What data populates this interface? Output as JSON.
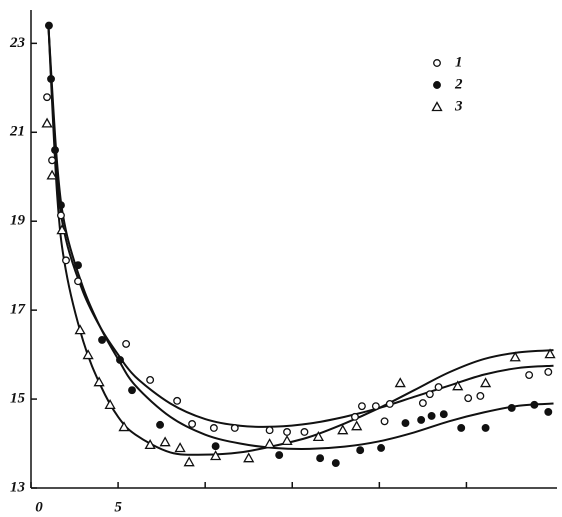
{
  "chart_data": {
    "type": "scatter",
    "xlim": [
      0,
      30.2
    ],
    "ylim": [
      13,
      23.75
    ],
    "xticks": [
      0,
      5,
      {
        "value": 10,
        "label": null
      },
      {
        "value": 15,
        "label": null
      },
      {
        "value": 20,
        "label": null
      },
      {
        "value": 25,
        "label": null
      }
    ],
    "yticks": [
      13,
      15,
      17,
      19,
      21,
      23
    ],
    "legend": "upper right",
    "series": [
      {
        "name": "1",
        "marker": "open-circle",
        "color": "#111",
        "x": [
          0.92,
          1.21,
          1.72,
          2.01,
          2.7,
          5.46,
          6.84,
          8.39,
          9.25,
          10.5,
          11.7,
          13.7,
          14.7,
          15.7,
          18.6,
          19.0,
          19.8,
          20.6,
          20.3,
          22.5,
          22.9,
          23.4,
          25.1,
          25.8,
          28.6,
          29.7
        ],
        "values": [
          21.79,
          20.37,
          19.13,
          18.12,
          17.65,
          16.24,
          15.43,
          14.96,
          14.44,
          14.35,
          14.35,
          14.3,
          14.26,
          14.26,
          14.6,
          14.84,
          14.84,
          14.89,
          14.5,
          14.91,
          15.11,
          15.27,
          15.02,
          15.07,
          15.54,
          15.61
        ]
      },
      {
        "name": "2",
        "marker": "filled-circle",
        "color": "#111",
        "x": [
          1.03,
          1.15,
          1.38,
          1.72,
          2.7,
          4.08,
          5.11,
          5.8,
          7.41,
          10.6,
          14.25,
          16.6,
          17.5,
          18.9,
          20.1,
          21.5,
          22.4,
          23.0,
          23.7,
          24.7,
          26.1,
          27.6,
          28.9,
          29.7
        ],
        "values": [
          23.4,
          22.2,
          20.6,
          19.36,
          18.01,
          16.33,
          15.88,
          15.2,
          14.42,
          13.94,
          13.74,
          13.67,
          13.56,
          13.85,
          13.9,
          14.46,
          14.53,
          14.62,
          14.66,
          14.35,
          14.35,
          14.8,
          14.87,
          14.71
        ]
      },
      {
        "name": "3",
        "marker": "open-triangle",
        "color": "#111",
        "x": [
          0.92,
          1.21,
          1.78,
          2.82,
          3.28,
          3.91,
          4.54,
          5.34,
          6.84,
          7.7,
          8.56,
          9.08,
          10.6,
          12.5,
          13.7,
          14.7,
          16.5,
          17.9,
          18.7,
          21.2,
          24.5,
          26.1,
          27.8,
          29.8
        ],
        "values": [
          21.2,
          20.03,
          18.8,
          16.55,
          15.99,
          15.38,
          14.87,
          14.37,
          13.97,
          14.03,
          13.9,
          13.58,
          13.72,
          13.67,
          13.99,
          14.06,
          14.15,
          14.3,
          14.39,
          15.36,
          15.29,
          15.36,
          15.94,
          16.01
        ]
      }
    ],
    "fit_curves": [
      {
        "color": "#111",
        "x": [
          1,
          1.5,
          2,
          3,
          4,
          5,
          6,
          8,
          10,
          12,
          14,
          16,
          18,
          20,
          22,
          24,
          26,
          28,
          30
        ],
        "values": [
          23.4,
          20,
          18.6,
          17.4,
          16.6,
          16.0,
          15.5,
          14.9,
          14.55,
          14.4,
          14.38,
          14.45,
          14.6,
          14.8,
          15.05,
          15.3,
          15.55,
          15.7,
          15.75
        ]
      },
      {
        "color": "#111",
        "x": [
          1,
          1.5,
          2,
          3,
          4,
          5,
          6,
          8,
          10,
          12,
          14,
          16,
          18,
          20,
          22,
          24,
          26,
          28,
          30
        ],
        "values": [
          23.4,
          20.3,
          18.8,
          17.5,
          16.6,
          15.9,
          15.3,
          14.6,
          14.2,
          14.0,
          13.9,
          13.88,
          13.93,
          14.05,
          14.25,
          14.5,
          14.7,
          14.85,
          14.9
        ]
      },
      {
        "color": "#111",
        "x": [
          1,
          1.5,
          2,
          3,
          4,
          5,
          6,
          8,
          10,
          12,
          14,
          16,
          18,
          20,
          22,
          24,
          26,
          28,
          30
        ],
        "values": [
          23.4,
          19.6,
          17.9,
          16.3,
          15.3,
          14.6,
          14.2,
          13.8,
          13.75,
          13.8,
          13.95,
          14.15,
          14.45,
          14.8,
          15.2,
          15.6,
          15.9,
          16.05,
          16.1
        ]
      }
    ]
  }
}
